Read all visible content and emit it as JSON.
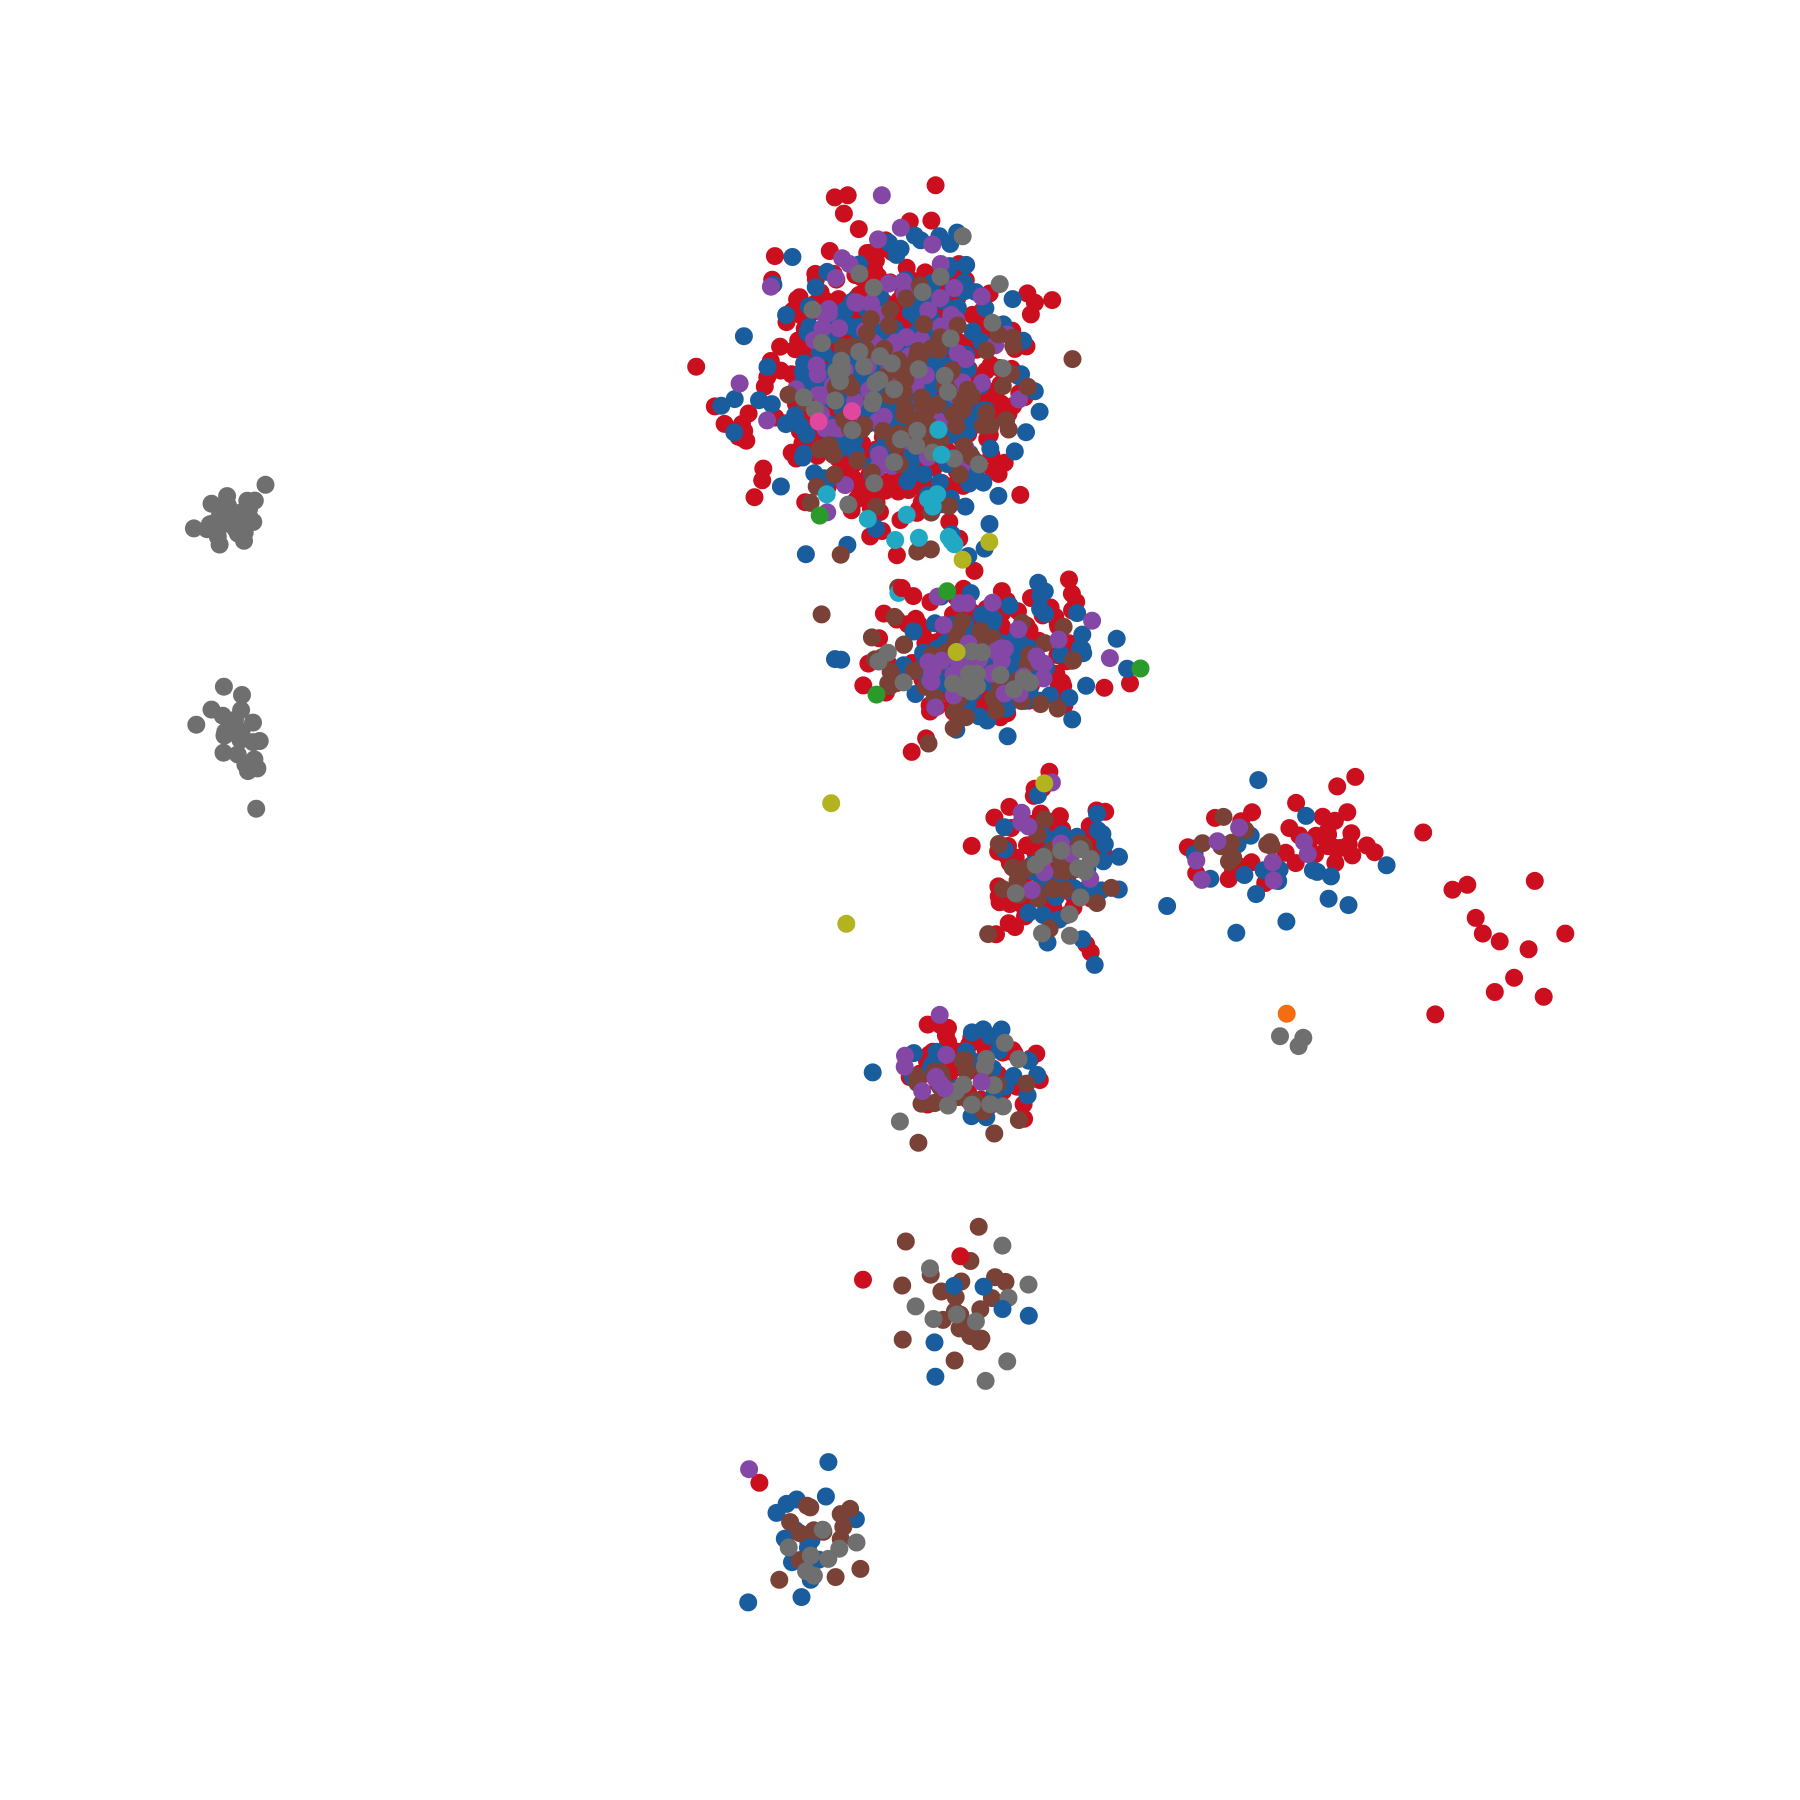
{
  "chart_data": {
    "type": "scatter",
    "title": "",
    "xlabel": "",
    "ylabel": "",
    "axes_visible": false,
    "grid": false,
    "xlim": [
      0,
      1000
    ],
    "ylim": [
      0,
      1000
    ],
    "colors": {
      "red": "#cc0f1f",
      "blue": "#1a5d9e",
      "purple": "#8447a6",
      "brown": "#7a4236",
      "gray": "#6f6f6f",
      "cyan": "#21a8c4",
      "olive": "#b3b320",
      "green": "#2a9a2a",
      "orange": "#f46d10",
      "pink": "#e0479e"
    },
    "clusters": [
      {
        "category": "gray",
        "center": [
          98,
          738
        ],
        "spread": [
          18,
          20
        ],
        "count": 38,
        "seed": 11
      },
      {
        "category": "gray",
        "center": [
          106,
          603
        ],
        "spread": [
          22,
          30
        ],
        "count": 22,
        "seed": 12
      },
      {
        "category": "red",
        "center": [
          500,
          820
        ],
        "spread": [
          70,
          75
        ],
        "count": 700,
        "seed": 21
      },
      {
        "category": "blue",
        "center": [
          500,
          820
        ],
        "spread": [
          70,
          75
        ],
        "count": 300,
        "seed": 22
      },
      {
        "category": "purple",
        "center": [
          495,
          830
        ],
        "spread": [
          65,
          70
        ],
        "count": 95,
        "seed": 23
      },
      {
        "category": "brown",
        "center": [
          505,
          805
        ],
        "spread": [
          68,
          75
        ],
        "count": 100,
        "seed": 24
      },
      {
        "category": "gray",
        "center": [
          505,
          815
        ],
        "spread": [
          65,
          70
        ],
        "count": 40,
        "seed": 25
      },
      {
        "category": "cyan",
        "center": [
          515,
          760
        ],
        "spread": [
          55,
          70
        ],
        "count": 14,
        "seed": 26
      },
      {
        "category": "red",
        "center": [
          555,
          650
        ],
        "spread": [
          65,
          40
        ],
        "count": 200,
        "seed": 31
      },
      {
        "category": "blue",
        "center": [
          555,
          650
        ],
        "spread": [
          65,
          40
        ],
        "count": 110,
        "seed": 32
      },
      {
        "category": "brown",
        "center": [
          545,
          640
        ],
        "spread": [
          60,
          38
        ],
        "count": 50,
        "seed": 33
      },
      {
        "category": "purple",
        "center": [
          560,
          650
        ],
        "spread": [
          60,
          40
        ],
        "count": 35,
        "seed": 34
      },
      {
        "category": "gray",
        "center": [
          545,
          640
        ],
        "spread": [
          60,
          40
        ],
        "count": 15,
        "seed": 35
      },
      {
        "category": "red",
        "center": [
          595,
          525
        ],
        "spread": [
          40,
          45
        ],
        "count": 80,
        "seed": 41
      },
      {
        "category": "blue",
        "center": [
          600,
          520
        ],
        "spread": [
          40,
          45
        ],
        "count": 40,
        "seed": 42
      },
      {
        "category": "brown",
        "center": [
          590,
          520
        ],
        "spread": [
          40,
          45
        ],
        "count": 25,
        "seed": 43
      },
      {
        "category": "purple",
        "center": [
          595,
          525
        ],
        "spread": [
          40,
          40
        ],
        "count": 10,
        "seed": 44
      },
      {
        "category": "gray",
        "center": [
          595,
          515
        ],
        "spread": [
          38,
          45
        ],
        "count": 12,
        "seed": 45
      },
      {
        "category": "red",
        "center": [
          545,
          395
        ],
        "spread": [
          45,
          30
        ],
        "count": 55,
        "seed": 51
      },
      {
        "category": "blue",
        "center": [
          545,
          395
        ],
        "spread": [
          45,
          30
        ],
        "count": 25,
        "seed": 52
      },
      {
        "category": "brown",
        "center": [
          545,
          385
        ],
        "spread": [
          45,
          30
        ],
        "count": 25,
        "seed": 53
      },
      {
        "category": "gray",
        "center": [
          545,
          390
        ],
        "spread": [
          45,
          30
        ],
        "count": 12,
        "seed": 54
      },
      {
        "category": "purple",
        "center": [
          530,
          395
        ],
        "spread": [
          40,
          28
        ],
        "count": 10,
        "seed": 55
      },
      {
        "category": "brown",
        "center": [
          535,
          255
        ],
        "spread": [
          40,
          45
        ],
        "count": 24,
        "seed": 61
      },
      {
        "category": "gray",
        "center": [
          540,
          250
        ],
        "spread": [
          40,
          45
        ],
        "count": 10,
        "seed": 62
      },
      {
        "category": "blue",
        "center": [
          530,
          240
        ],
        "spread": [
          45,
          40
        ],
        "count": 6,
        "seed": 63
      },
      {
        "category": "red",
        "center": [
          520,
          265
        ],
        "spread": [
          30,
          30
        ],
        "count": 2,
        "seed": 64
      },
      {
        "category": "blue",
        "center": [
          455,
          105
        ],
        "spread": [
          40,
          40
        ],
        "count": 16,
        "seed": 71
      },
      {
        "category": "brown",
        "center": [
          455,
          100
        ],
        "spread": [
          35,
          40
        ],
        "count": 14,
        "seed": 72
      },
      {
        "category": "gray",
        "center": [
          455,
          110
        ],
        "spread": [
          35,
          40
        ],
        "count": 8,
        "seed": 73
      },
      {
        "category": "red",
        "center": [
          415,
          140
        ],
        "spread": [
          5,
          4
        ],
        "count": 1,
        "seed": 74
      },
      {
        "category": "purple",
        "center": [
          410,
          150
        ],
        "spread": [
          4,
          4
        ],
        "count": 1,
        "seed": 75
      },
      {
        "category": "red",
        "center": [
          745,
          535
        ],
        "spread": [
          60,
          35
        ],
        "count": 40,
        "seed": 81
      },
      {
        "category": "blue",
        "center": [
          735,
          520
        ],
        "spread": [
          55,
          40
        ],
        "count": 20,
        "seed": 82
      },
      {
        "category": "brown",
        "center": [
          715,
          535
        ],
        "spread": [
          45,
          20
        ],
        "count": 10,
        "seed": 83
      },
      {
        "category": "purple",
        "center": [
          720,
          525
        ],
        "spread": [
          50,
          28
        ],
        "count": 8,
        "seed": 84
      },
      {
        "category": "gray",
        "center": [
          740,
          410
        ],
        "spread": [
          12,
          8
        ],
        "count": 3,
        "seed": 85
      },
      {
        "category": "red",
        "center": [
          885,
          465
        ],
        "spread": [
          45,
          45
        ],
        "count": 11,
        "seed": 91
      },
      {
        "category": "pink",
        "center": [
          470,
          800
        ],
        "spread": [
          20,
          30
        ],
        "count": 2,
        "seed": 101
      },
      {
        "category": "olive",
        "center": [
          510,
          620
        ],
        "spread": [
          60,
          140
        ],
        "count": 6,
        "seed": 102
      },
      {
        "category": "green",
        "center": [
          560,
          700
        ],
        "spread": [
          120,
          100
        ],
        "count": 4,
        "seed": 103
      },
      {
        "category": "orange",
        "center": [
          740,
          432
        ],
        "spread": [
          2,
          2
        ],
        "count": 1,
        "seed": 104
      }
    ]
  }
}
